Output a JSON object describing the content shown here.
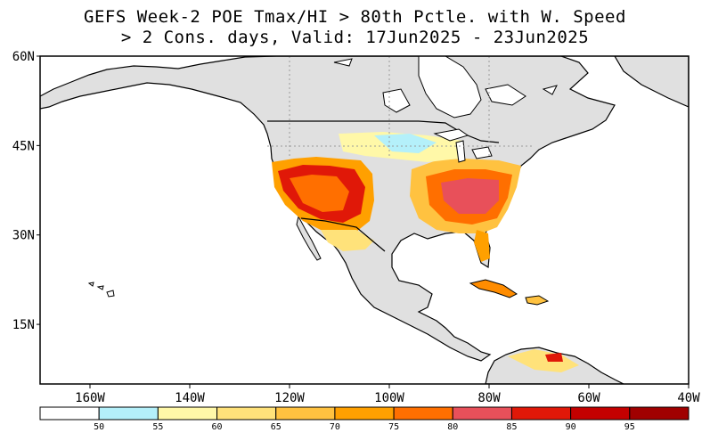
{
  "title_line1": "GEFS Week-2 POE Tmax/HI > 80th Pctle. with W. Speed",
  "title_line2": "> 2 Cons. days, Valid: 17Jun2025 - 23Jun2025",
  "map": {
    "lat_range": [
      5,
      60
    ],
    "lon_range": [
      -170,
      -40
    ],
    "lat_labels": [
      {
        "value": 60,
        "text": "60N"
      },
      {
        "value": 45,
        "text": "45N"
      },
      {
        "value": 30,
        "text": "30N"
      },
      {
        "value": 15,
        "text": "15N"
      }
    ],
    "lon_labels": [
      {
        "value": -160,
        "text": "160W"
      },
      {
        "value": -140,
        "text": "140W"
      },
      {
        "value": -120,
        "text": "120W"
      },
      {
        "value": -100,
        "text": "100W"
      },
      {
        "value": -80,
        "text": "80W"
      },
      {
        "value": -60,
        "text": "60W"
      },
      {
        "value": -40,
        "text": "40W"
      }
    ],
    "colors": {
      "land_masked": "#e0e0e0",
      "ocean": "#ffffff",
      "coast": "#000000"
    }
  },
  "colorbar": {
    "colors": [
      "#ffffff",
      "#b4f0fa",
      "#fff8a8",
      "#ffe27a",
      "#ffc240",
      "#ffa000",
      "#ff6f00",
      "#e8505a",
      "#e01808",
      "#c40000",
      "#a00000"
    ],
    "labels": [
      "50",
      "55",
      "60",
      "65",
      "70",
      "75",
      "80",
      "85",
      "90",
      "95"
    ]
  }
}
